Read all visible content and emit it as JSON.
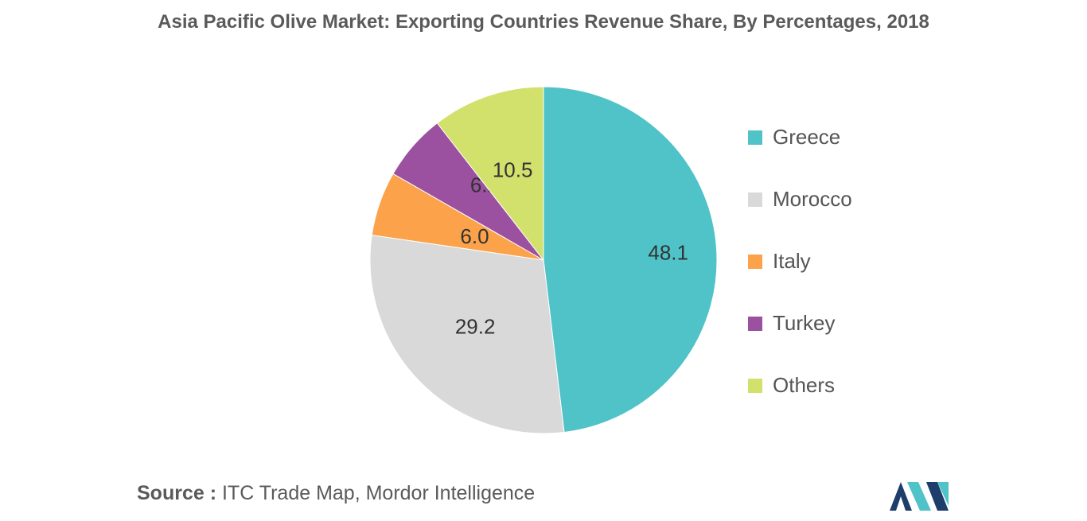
{
  "chart_data": {
    "type": "pie",
    "title": "Asia Pacific Olive Market: Exporting Countries Revenue Share, By Percentages, 2018",
    "slices": [
      {
        "label": "Greece",
        "value": 48.1,
        "display": "48.1",
        "color": "#4fc3c8"
      },
      {
        "label": "Morocco",
        "value": 29.2,
        "display": "29.2",
        "color": "#d9d9d9"
      },
      {
        "label": "Italy",
        "value": 6.0,
        "display": "6.0",
        "color": "#fba24a"
      },
      {
        "label": "Turkey",
        "value": 6.2,
        "display": "6.2",
        "color": "#9b51a0"
      },
      {
        "label": "Others",
        "value": 10.5,
        "display": "10.5",
        "color": "#d2e16c"
      }
    ],
    "legend_position": "right"
  },
  "footer": {
    "source_label": "Source :",
    "source_text": " ITC Trade Map, Mordor Intelligence"
  },
  "logo": {
    "colors": {
      "dark": "#1d3d6b",
      "light": "#4fc3c8"
    }
  }
}
